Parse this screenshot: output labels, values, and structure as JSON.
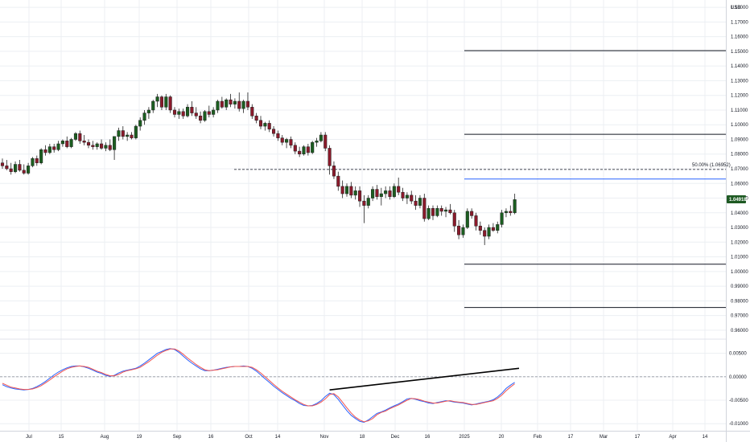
{
  "chart_data": {
    "type": "candlestick",
    "currency": "USD",
    "price_axis": {
      "range": [
        0.955,
        1.185
      ],
      "ticks": [
        "1.18000",
        "1.17000",
        "1.16000",
        "1.15000",
        "1.14000",
        "1.13000",
        "1.12000",
        "1.11000",
        "1.10000",
        "1.09000",
        "1.08000",
        "1.07000",
        "1.06000",
        "1.05000",
        "1.04000",
        "1.03000",
        "1.02000",
        "1.01000",
        "1.00000",
        "0.99000",
        "0.98000",
        "0.97000",
        "0.96000"
      ]
    },
    "last_price": "1.04918",
    "x_axis": {
      "ticks": [
        "Jul",
        "15",
        "Aug",
        "19",
        "Sep",
        "16",
        "Oct",
        "14",
        "Nov",
        "18",
        "Dec",
        "16",
        "2025",
        "20",
        "Feb",
        "17",
        "Mar",
        "17",
        "Apr",
        "14"
      ]
    },
    "candles": [
      [
        1.074,
        1.077,
        1.07,
        1.072
      ],
      [
        1.072,
        1.076,
        1.069,
        1.07
      ],
      [
        1.07,
        1.074,
        1.066,
        1.068
      ],
      [
        1.068,
        1.075,
        1.067,
        1.073
      ],
      [
        1.073,
        1.076,
        1.068,
        1.069
      ],
      [
        1.069,
        1.073,
        1.066,
        1.067
      ],
      [
        1.067,
        1.074,
        1.066,
        1.072
      ],
      [
        1.072,
        1.078,
        1.071,
        1.077
      ],
      [
        1.077,
        1.079,
        1.072,
        1.074
      ],
      [
        1.074,
        1.084,
        1.073,
        1.083
      ],
      [
        1.083,
        1.086,
        1.079,
        1.081
      ],
      [
        1.081,
        1.087,
        1.08,
        1.085
      ],
      [
        1.085,
        1.087,
        1.081,
        1.083
      ],
      [
        1.083,
        1.089,
        1.082,
        1.087
      ],
      [
        1.087,
        1.09,
        1.085,
        1.089
      ],
      [
        1.089,
        1.092,
        1.084,
        1.085
      ],
      [
        1.085,
        1.091,
        1.084,
        1.09
      ],
      [
        1.09,
        1.095,
        1.089,
        1.094
      ],
      [
        1.094,
        1.096,
        1.087,
        1.089
      ],
      [
        1.089,
        1.093,
        1.086,
        1.088
      ],
      [
        1.088,
        1.09,
        1.084,
        1.086
      ],
      [
        1.086,
        1.089,
        1.083,
        1.085
      ],
      [
        1.085,
        1.088,
        1.083,
        1.087
      ],
      [
        1.087,
        1.09,
        1.083,
        1.084
      ],
      [
        1.084,
        1.088,
        1.082,
        1.086
      ],
      [
        1.086,
        1.09,
        1.082,
        1.083
      ],
      [
        1.083,
        1.092,
        1.076,
        1.092
      ],
      [
        1.092,
        1.098,
        1.089,
        1.096
      ],
      [
        1.096,
        1.099,
        1.09,
        1.092
      ],
      [
        1.092,
        1.095,
        1.089,
        1.093
      ],
      [
        1.093,
        1.095,
        1.09,
        1.091
      ],
      [
        1.091,
        1.1,
        1.09,
        1.099
      ],
      [
        1.099,
        1.105,
        1.096,
        1.103
      ],
      [
        1.103,
        1.11,
        1.1,
        1.108
      ],
      [
        1.108,
        1.112,
        1.104,
        1.11
      ],
      [
        1.11,
        1.117,
        1.108,
        1.116
      ],
      [
        1.116,
        1.121,
        1.112,
        1.119
      ],
      [
        1.119,
        1.12,
        1.11,
        1.112
      ],
      [
        1.112,
        1.121,
        1.11,
        1.119
      ],
      [
        1.119,
        1.12,
        1.108,
        1.11
      ],
      [
        1.11,
        1.112,
        1.105,
        1.107
      ],
      [
        1.107,
        1.111,
        1.104,
        1.109
      ],
      [
        1.109,
        1.111,
        1.104,
        1.106
      ],
      [
        1.106,
        1.114,
        1.105,
        1.112
      ],
      [
        1.112,
        1.116,
        1.106,
        1.108
      ],
      [
        1.108,
        1.112,
        1.104,
        1.106
      ],
      [
        1.106,
        1.109,
        1.101,
        1.103
      ],
      [
        1.103,
        1.11,
        1.102,
        1.109
      ],
      [
        1.109,
        1.113,
        1.105,
        1.107
      ],
      [
        1.107,
        1.112,
        1.105,
        1.11
      ],
      [
        1.11,
        1.117,
        1.108,
        1.116
      ],
      [
        1.116,
        1.119,
        1.111,
        1.112
      ],
      [
        1.112,
        1.118,
        1.11,
        1.117
      ],
      [
        1.117,
        1.121,
        1.112,
        1.114
      ],
      [
        1.114,
        1.118,
        1.111,
        1.116
      ],
      [
        1.116,
        1.122,
        1.109,
        1.111
      ],
      [
        1.111,
        1.117,
        1.108,
        1.116
      ],
      [
        1.116,
        1.122,
        1.11,
        1.112
      ],
      [
        1.112,
        1.114,
        1.104,
        1.106
      ],
      [
        1.106,
        1.108,
        1.101,
        1.103
      ],
      [
        1.103,
        1.106,
        1.097,
        1.099
      ],
      [
        1.099,
        1.102,
        1.096,
        1.101
      ],
      [
        1.101,
        1.103,
        1.095,
        1.097
      ],
      [
        1.097,
        1.099,
        1.092,
        1.094
      ],
      [
        1.094,
        1.096,
        1.089,
        1.091
      ],
      [
        1.091,
        1.093,
        1.086,
        1.088
      ],
      [
        1.088,
        1.091,
        1.084,
        1.09
      ],
      [
        1.09,
        1.092,
        1.084,
        1.086
      ],
      [
        1.086,
        1.088,
        1.08,
        1.082
      ],
      [
        1.082,
        1.085,
        1.078,
        1.08
      ],
      [
        1.08,
        1.086,
        1.079,
        1.085
      ],
      [
        1.085,
        1.087,
        1.079,
        1.081
      ],
      [
        1.081,
        1.089,
        1.08,
        1.088
      ],
      [
        1.088,
        1.091,
        1.085,
        1.089
      ],
      [
        1.089,
        1.095,
        1.088,
        1.093
      ],
      [
        1.093,
        1.095,
        1.082,
        1.084
      ],
      [
        1.084,
        1.086,
        1.066,
        1.072
      ],
      [
        1.072,
        1.075,
        1.063,
        1.065
      ],
      [
        1.065,
        1.068,
        1.055,
        1.058
      ],
      [
        1.058,
        1.062,
        1.05,
        1.053
      ],
      [
        1.053,
        1.06,
        1.051,
        1.058
      ],
      [
        1.058,
        1.061,
        1.05,
        1.052
      ],
      [
        1.052,
        1.058,
        1.049,
        1.055
      ],
      [
        1.055,
        1.058,
        1.044,
        1.048
      ],
      [
        1.048,
        1.052,
        1.033,
        1.045
      ],
      [
        1.045,
        1.052,
        1.043,
        1.05
      ],
      [
        1.05,
        1.058,
        1.048,
        1.056
      ],
      [
        1.056,
        1.059,
        1.049,
        1.051
      ],
      [
        1.051,
        1.057,
        1.045,
        1.053
      ],
      [
        1.053,
        1.058,
        1.05,
        1.055
      ],
      [
        1.055,
        1.058,
        1.049,
        1.051
      ],
      [
        1.051,
        1.06,
        1.05,
        1.058
      ],
      [
        1.058,
        1.064,
        1.052,
        1.054
      ],
      [
        1.054,
        1.057,
        1.048,
        1.05
      ],
      [
        1.05,
        1.054,
        1.046,
        1.052
      ],
      [
        1.052,
        1.055,
        1.046,
        1.048
      ],
      [
        1.048,
        1.052,
        1.042,
        1.045
      ],
      [
        1.045,
        1.052,
        1.043,
        1.05
      ],
      [
        1.05,
        1.053,
        1.034,
        1.036
      ],
      [
        1.036,
        1.045,
        1.035,
        1.043
      ],
      [
        1.043,
        1.045,
        1.035,
        1.038
      ],
      [
        1.038,
        1.045,
        1.037,
        1.043
      ],
      [
        1.043,
        1.045,
        1.038,
        1.041
      ],
      [
        1.041,
        1.044,
        1.037,
        1.042
      ],
      [
        1.042,
        1.046,
        1.039,
        1.04
      ],
      [
        1.04,
        1.042,
        1.027,
        1.031
      ],
      [
        1.031,
        1.035,
        1.022,
        1.025
      ],
      [
        1.025,
        1.032,
        1.023,
        1.03
      ],
      [
        1.03,
        1.043,
        1.029,
        1.041
      ],
      [
        1.041,
        1.043,
        1.036,
        1.038
      ],
      [
        1.038,
        1.04,
        1.028,
        1.031
      ],
      [
        1.031,
        1.034,
        1.025,
        1.028
      ],
      [
        1.028,
        1.03,
        1.018,
        1.024
      ],
      [
        1.024,
        1.032,
        1.022,
        1.03
      ],
      [
        1.03,
        1.033,
        1.027,
        1.028
      ],
      [
        1.028,
        1.034,
        1.026,
        1.032
      ],
      [
        1.032,
        1.042,
        1.03,
        1.04
      ],
      [
        1.04,
        1.043,
        1.037,
        1.041
      ],
      [
        1.041,
        1.045,
        1.038,
        1.04
      ],
      [
        1.04,
        1.053,
        1.039,
        1.049
      ]
    ],
    "fib_label": "50.00% (1.06952)",
    "levels": [
      {
        "price": 1.1505,
        "color": "#131722"
      },
      {
        "price": 1.0935,
        "color": "#131722"
      },
      {
        "price": 1.063,
        "color": "#2962ff"
      },
      {
        "price": 1.005,
        "color": "#131722"
      },
      {
        "price": 0.9755,
        "color": "#131722"
      }
    ],
    "fib_line": {
      "price": 1.06952,
      "color": "#131722",
      "style": "dashed"
    },
    "oscillator": {
      "range": [
        -0.0115,
        0.0075
      ],
      "ticks": [
        "0.00500",
        "0.00000",
        "-0.00500",
        "-0.01000"
      ],
      "zero_line": "dashed",
      "series": [
        {
          "color": "#2962ff",
          "values": [
            -0.0017,
            -0.0021,
            -0.0024,
            -0.0026,
            -0.0027,
            -0.0028,
            -0.0027,
            -0.0025,
            -0.0021,
            -0.0016,
            -0.001,
            -0.0003,
            0.0004,
            0.001,
            0.0015,
            0.0019,
            0.0022,
            0.0023,
            0.0023,
            0.0021,
            0.0018,
            0.0014,
            0.001,
            0.0007,
            0.0003,
            0.0001,
            0.0003,
            0.0008,
            0.0012,
            0.0014,
            0.0016,
            0.0018,
            0.0023,
            0.0029,
            0.0036,
            0.0043,
            0.005,
            0.0054,
            0.0058,
            0.006,
            0.0058,
            0.0052,
            0.0044,
            0.0036,
            0.0029,
            0.0023,
            0.0017,
            0.0013,
            0.0013,
            0.0014,
            0.0016,
            0.0018,
            0.002,
            0.0021,
            0.0022,
            0.0022,
            0.0023,
            0.0022,
            0.0018,
            0.0012,
            0.0004,
            -0.0004,
            -0.0012,
            -0.002,
            -0.0027,
            -0.0034,
            -0.004,
            -0.0046,
            -0.0051,
            -0.0057,
            -0.0061,
            -0.0062,
            -0.0061,
            -0.0057,
            -0.0051,
            -0.0042,
            -0.0035,
            -0.0038,
            -0.0048,
            -0.006,
            -0.0072,
            -0.0082,
            -0.0089,
            -0.0095,
            -0.0097,
            -0.0092,
            -0.0085,
            -0.0078,
            -0.0075,
            -0.0071,
            -0.0066,
            -0.0062,
            -0.0058,
            -0.0053,
            -0.0047,
            -0.0046,
            -0.0048,
            -0.0051,
            -0.0053,
            -0.0056,
            -0.0057,
            -0.0055,
            -0.0053,
            -0.0051,
            -0.0052,
            -0.0054,
            -0.0055,
            -0.0056,
            -0.0058,
            -0.006,
            -0.0058,
            -0.0056,
            -0.0054,
            -0.0052,
            -0.0049,
            -0.0043,
            -0.0035,
            -0.0025,
            -0.0018,
            -0.0012
          ]
        },
        {
          "color": "#ef5350",
          "values": [
            -0.0014,
            -0.0018,
            -0.0022,
            -0.0024,
            -0.0026,
            -0.0027,
            -0.0027,
            -0.0026,
            -0.0023,
            -0.0019,
            -0.0013,
            -0.0007,
            0.0,
            0.0006,
            0.0012,
            0.0017,
            0.002,
            0.0022,
            0.0023,
            0.0022,
            0.002,
            0.0016,
            0.0012,
            0.0009,
            0.0005,
            0.0002,
            0.0002,
            0.0005,
            0.001,
            0.0013,
            0.0015,
            0.0017,
            0.002,
            0.0026,
            0.0032,
            0.0039,
            0.0046,
            0.0052,
            0.0056,
            0.0059,
            0.0059,
            0.0055,
            0.0048,
            0.004,
            0.0033,
            0.0026,
            0.002,
            0.0015,
            0.0013,
            0.0014,
            0.0015,
            0.0017,
            0.0019,
            0.0021,
            0.0022,
            0.0022,
            0.0022,
            0.0022,
            0.002,
            0.0015,
            0.0008,
            0.0,
            -0.0008,
            -0.0016,
            -0.0024,
            -0.0031,
            -0.0037,
            -0.0043,
            -0.0049,
            -0.0054,
            -0.0059,
            -0.0062,
            -0.0062,
            -0.0059,
            -0.0054,
            -0.0047,
            -0.0038,
            -0.0036,
            -0.0043,
            -0.0054,
            -0.0066,
            -0.0077,
            -0.0086,
            -0.0092,
            -0.0096,
            -0.0094,
            -0.0089,
            -0.0081,
            -0.0076,
            -0.0073,
            -0.0068,
            -0.0064,
            -0.006,
            -0.0055,
            -0.005,
            -0.0046,
            -0.0047,
            -0.0049,
            -0.0052,
            -0.0054,
            -0.0056,
            -0.0056,
            -0.0054,
            -0.0052,
            -0.0051,
            -0.0053,
            -0.0054,
            -0.0055,
            -0.0057,
            -0.0059,
            -0.0059,
            -0.0057,
            -0.0055,
            -0.0053,
            -0.0051,
            -0.0046,
            -0.0039,
            -0.003,
            -0.0022,
            -0.0015
          ]
        }
      ],
      "trendline": {
        "from": [
          76,
          -0.0028
        ],
        "to": [
          120,
          0.0018
        ]
      }
    },
    "colors": {
      "up": "#1b5e20",
      "down": "#8b1a2b",
      "last_price_bg": "#1e5a23",
      "grid": "#eceff3"
    }
  }
}
